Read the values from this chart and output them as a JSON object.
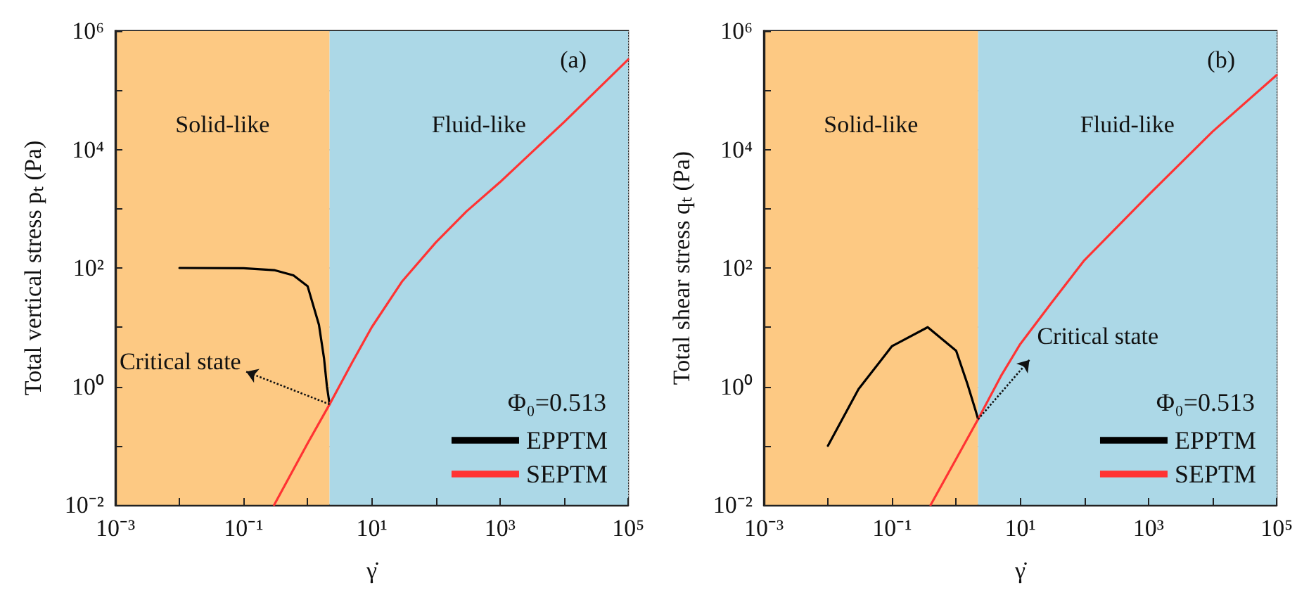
{
  "chart_data": [
    {
      "type": "line",
      "xlabel": "γ̇",
      "ylabel": "Total vertical stress pₜ (Pa)",
      "legend_title": "Φ₀=0.513",
      "legend": "bottom right",
      "grid": true,
      "log": "xy",
      "line_style": "solid",
      "marker": "none",
      "xlim": [
        0.001,
        100000
      ],
      "ylim": [
        0.01,
        1000000
      ],
      "xticks": [
        {
          "value": 0.001,
          "label": "10⁻³"
        },
        {
          "value": 0.01,
          "label": null
        },
        {
          "value": 0.1,
          "label": "10⁻¹"
        },
        {
          "value": 1,
          "label": null
        },
        {
          "value": 10,
          "label": "10¹"
        },
        {
          "value": 100,
          "label": null
        },
        {
          "value": 1000,
          "label": "10³"
        },
        {
          "value": 10000,
          "label": null
        },
        {
          "value": 100000,
          "label": "10⁵"
        }
      ],
      "yticks": [
        {
          "value": 0.01,
          "label": "10⁻²"
        },
        {
          "value": 0.1,
          "label": null
        },
        {
          "value": 1,
          "label": "10⁰"
        },
        {
          "value": 10,
          "label": null
        },
        {
          "value": 100,
          "label": "10²"
        },
        {
          "value": 1000,
          "label": null
        },
        {
          "value": 10000,
          "label": "10⁴"
        },
        {
          "value": 100000,
          "label": null
        },
        {
          "value": 1000000,
          "label": "10⁶"
        }
      ],
      "bands": [
        {
          "axis": "x",
          "from": 0.001,
          "to": 2.2,
          "label": "Solid-like",
          "color": "#fdc983"
        },
        {
          "axis": "x",
          "from": 2.2,
          "to": 100000,
          "label": "Fluid-like",
          "color": "#acd8e7"
        }
      ],
      "annotations": [
        "(a)",
        {
          "text": "Critical state",
          "x": 2.2,
          "y": 0.5
        }
      ],
      "series": [
        {
          "name": "EPPTM",
          "color": "#000000",
          "x": [
            0.01,
            0.1,
            0.3,
            0.6,
            1,
            1.5,
            1.8,
            2,
            2.2
          ],
          "values": [
            100,
            99,
            92,
            75,
            49,
            11,
            3,
            1,
            0.5
          ]
        },
        {
          "name": "SEPTM",
          "color": "#ff3333",
          "x": [
            0.3,
            1,
            2.2,
            5,
            10,
            30,
            100,
            300,
            1000,
            10000,
            100000
          ],
          "values": [
            0.01,
            0.11,
            0.5,
            2.6,
            10,
            60,
            270,
            900,
            2800,
            29000,
            330000
          ]
        }
      ]
    },
    {
      "type": "line",
      "xlabel": "γ̇",
      "ylabel": "Total shear stress qₜ (Pa)",
      "legend_title": "Φ₀=0.513",
      "legend": "bottom right",
      "grid": true,
      "log": "xy",
      "line_style": "solid",
      "marker": "none",
      "xlim": [
        0.001,
        100000
      ],
      "ylim": [
        0.01,
        1000000
      ],
      "xticks": [
        {
          "value": 0.001,
          "label": "10⁻³"
        },
        {
          "value": 0.01,
          "label": null
        },
        {
          "value": 0.1,
          "label": "10⁻¹"
        },
        {
          "value": 1,
          "label": null
        },
        {
          "value": 10,
          "label": "10¹"
        },
        {
          "value": 100,
          "label": null
        },
        {
          "value": 1000,
          "label": "10³"
        },
        {
          "value": 10000,
          "label": null
        },
        {
          "value": 100000,
          "label": "10⁵"
        }
      ],
      "yticks": [
        {
          "value": 0.01,
          "label": "10⁻²"
        },
        {
          "value": 0.1,
          "label": null
        },
        {
          "value": 1,
          "label": "10⁰"
        },
        {
          "value": 10,
          "label": null
        },
        {
          "value": 100,
          "label": "10²"
        },
        {
          "value": 1000,
          "label": null
        },
        {
          "value": 10000,
          "label": "10⁴"
        },
        {
          "value": 100000,
          "label": null
        },
        {
          "value": 1000000,
          "label": "10⁶"
        }
      ],
      "bands": [
        {
          "axis": "x",
          "from": 0.001,
          "to": 2.2,
          "label": "Solid-like",
          "color": "#fdc983"
        },
        {
          "axis": "x",
          "from": 2.2,
          "to": 100000,
          "label": "Fluid-like",
          "color": "#acd8e7"
        }
      ],
      "annotations": [
        "(b)",
        {
          "text": "Critical state",
          "x": 2.2,
          "y": 0.28
        }
      ],
      "series": [
        {
          "name": "EPPTM",
          "color": "#000000",
          "x": [
            0.01,
            0.03,
            0.1,
            0.36,
            1,
            1.5,
            2,
            2.2
          ],
          "values": [
            0.1,
            0.9,
            4.8,
            10,
            4,
            1.1,
            0.4,
            0.28
          ]
        },
        {
          "name": "SEPTM",
          "color": "#ff3333",
          "x": [
            0.4,
            1,
            2.2,
            5,
            10,
            30,
            100,
            1000,
            10000,
            100000
          ],
          "values": [
            0.01,
            0.06,
            0.28,
            1.5,
            5.2,
            25,
            135,
            1700,
            20000,
            180000
          ]
        }
      ]
    }
  ]
}
